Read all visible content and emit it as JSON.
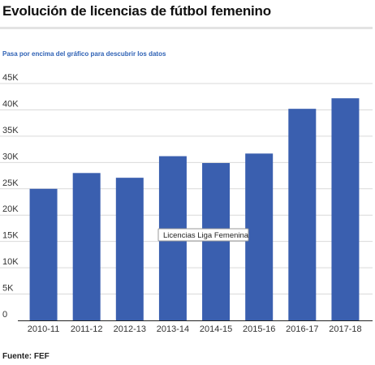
{
  "header": {
    "title": "Evolución de licencias de fútbol femenino",
    "hint": "Pasa por encima del gráfico para descubrir los datos"
  },
  "footer": {
    "source": "Fuente: FEF"
  },
  "colors": {
    "bar": "#3a5faf",
    "grid": "#d9d9d9",
    "hint": "#2f62b5",
    "axis": "#222222"
  },
  "tooltip": {
    "label": "Licencias Liga Femenina"
  },
  "chart_data": {
    "type": "bar",
    "title": "Evolución de licencias de fútbol femenino",
    "xlabel": "",
    "ylabel": "",
    "categories": [
      "2010-11",
      "2011-12",
      "2012-13",
      "2013-14",
      "2014-15",
      "2015-16",
      "2016-17",
      "2017-18"
    ],
    "series": [
      {
        "name": "Licencias Liga Femenina",
        "values": [
          25000,
          28000,
          27100,
          31200,
          29900,
          31700,
          40200,
          42200
        ]
      }
    ],
    "ylim": [
      0,
      45000
    ],
    "yticks": [
      0,
      5000,
      10000,
      15000,
      20000,
      25000,
      30000,
      35000,
      40000,
      45000
    ],
    "ytick_labels": [
      "0",
      "5K",
      "10K",
      "15K",
      "20K",
      "25K",
      "30K",
      "35K",
      "40K",
      "45K"
    ],
    "grid": true,
    "legend": "none"
  }
}
